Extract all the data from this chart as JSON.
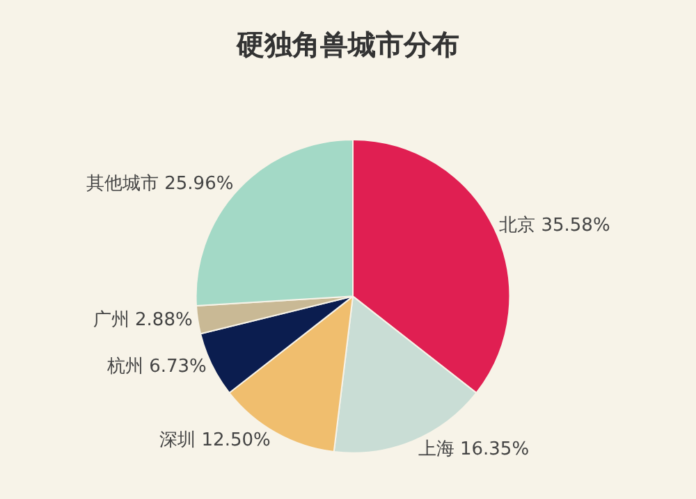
{
  "chart_data": {
    "type": "pie",
    "title": "硬独角兽城市分布",
    "categories": [
      "北京",
      "上海",
      "深圳",
      "杭州",
      "广州",
      "其他城市"
    ],
    "values": [
      35.58,
      16.35,
      12.5,
      6.73,
      2.88,
      25.96
    ],
    "value_labels": [
      "35.58%",
      "16.35%",
      "12.50%",
      "6.73%",
      "2.88%",
      "25.96%"
    ],
    "colors": [
      "#e01f52",
      "#c9ddd5",
      "#f0be6e",
      "#0b1d4f",
      "#c9b995",
      "#a3d9c6"
    ],
    "legend": false
  }
}
